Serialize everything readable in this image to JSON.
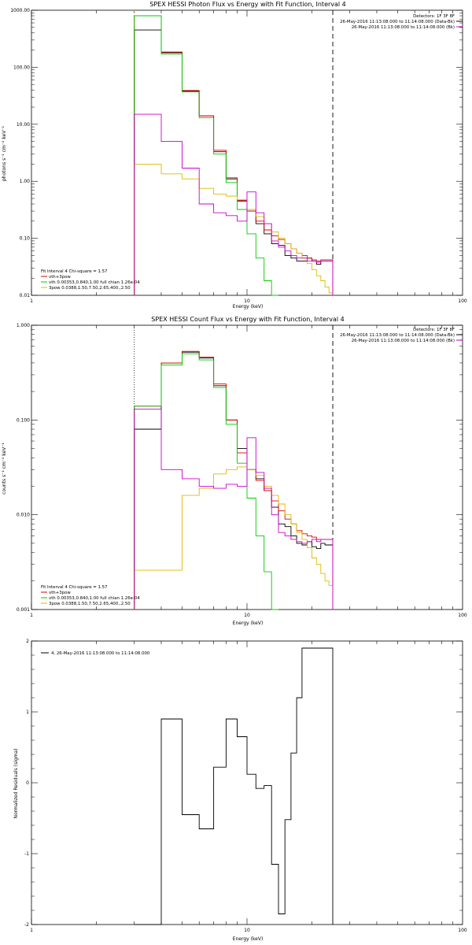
{
  "colors": {
    "total": "#000000",
    "combined_fit": "#dd0000",
    "vth": "#00cc00",
    "pow": "#ddbb00",
    "bk": "#cc00cc",
    "dashed": "#000000",
    "dotted": "#000000",
    "orange": "#ff8800"
  },
  "chart_data": [
    {
      "type": "line",
      "title": "SPEX HESSI Photon Flux vs Energy with Fit Function, Interval 4",
      "xlabel": "Energy (keV)",
      "ylabel": "photons s⁻¹ cm⁻² keV⁻¹",
      "xscale": "log",
      "yscale": "log",
      "xlim": [
        1,
        100
      ],
      "ylim": [
        0.01,
        1000
      ],
      "x_ticks": [
        "1",
        "10",
        "100"
      ],
      "y_ticks": [
        "0.01",
        "0.10",
        "1.00",
        "10.00",
        "100.00",
        "1000.00"
      ],
      "legend_top_right": [
        "Detectors: 1F 3F 8F",
        "26-May-2016 11:13:08.000 to 11:14:08.000 (Data-Bk)",
        "26-May-2016 11:13:08.000 to 11:14:08.000 (Bk)"
      ],
      "legend_bottom_left": [
        "Fit Interval 4   Chi-square = 1.57",
        "vth+3pow",
        "vth 0.00353,0.840,1.00  full chian 1.26e-04",
        "3pow 0.0388,1.50,7.50,2.65,400.,2.50"
      ],
      "x_edges": [
        3,
        4,
        5,
        6,
        7,
        8,
        9,
        10,
        11,
        12,
        13,
        14,
        15,
        16,
        17,
        18,
        19,
        20,
        21,
        22,
        23,
        24,
        25
      ],
      "series": [
        {
          "name": "Data-Bk",
          "color": "#000000",
          "values": [
            450,
            180,
            38,
            14,
            3.3,
            1.1,
            0.45,
            0.3,
            0.18,
            0.12,
            0.08,
            0.075,
            0.05,
            0.045,
            0.04,
            0.04,
            0.045,
            0.04,
            0.035,
            0.04,
            0.04,
            0.04
          ]
        },
        {
          "name": "vth+3pow",
          "color": "#dd0000",
          "values": [
            800,
            185,
            39,
            14,
            3.5,
            1.15,
            0.46,
            0.3,
            0.2,
            0.14,
            0.11,
            0.095,
            0.08,
            0.065,
            0.055,
            0.05,
            0.045,
            0.042,
            0.04,
            0.042,
            0.042,
            0.042
          ]
        },
        {
          "name": "vth",
          "color": "#00cc00",
          "values": [
            800,
            170,
            37,
            13,
            3.0,
            0.95,
            0.32,
            0.12,
            0.045,
            0.018,
            0.0
          ]
        },
        {
          "name": "3pow",
          "color": "#ddbb00",
          "values": [
            2.0,
            1.35,
            1.1,
            0.75,
            0.6,
            0.55,
            0.48,
            0.32,
            0.24,
            0.18,
            0.13,
            0.1,
            0.08,
            0.065,
            0.055,
            0.045,
            0.036,
            0.028,
            0.022,
            0.018,
            0.014,
            0.011
          ]
        },
        {
          "name": "Bk",
          "color": "#cc00cc",
          "values": [
            15,
            5,
            1.7,
            0.4,
            0.28,
            0.25,
            0.2,
            0.65,
            0.28,
            0.18,
            0.09,
            0.07,
            0.06,
            0.05,
            0.045,
            0.045,
            0.04,
            0.04,
            0.038,
            0.04,
            0.04,
            0.04
          ]
        }
      ],
      "dotted_line_x": 3,
      "dashed_line_x": 25
    },
    {
      "type": "line",
      "title": "SPEX HESSI Count Flux vs Energy with Fit Function, Interval 4",
      "xlabel": "Energy (keV)",
      "ylabel": "counts s⁻¹ cm⁻² keV⁻¹",
      "xscale": "log",
      "yscale": "log",
      "xlim": [
        1,
        100
      ],
      "ylim": [
        0.001,
        1
      ],
      "x_ticks": [
        "1",
        "10",
        "100"
      ],
      "y_ticks": [
        "0.001",
        "0.010",
        "0.100",
        "1.000"
      ],
      "legend_top_right": [
        "Detectors: 1F 3F 8F",
        "26-May-2016 11:13:08.000 to 11:14:08.000 (Data-Bk)",
        "26-May-2016 11:13:08.000 to 11:14:08.000 (Bk)"
      ],
      "legend_bottom_left": [
        "Fit Interval 4   Chi-square = 1.57",
        "vth+3pow",
        "vth 0.00353,0.840,1.00  full chian 1.26e-04",
        "3pow 0.0388,1.50,7.50,2.65,400.,2.50"
      ],
      "x_edges": [
        3,
        4,
        5,
        6,
        7,
        8,
        9,
        10,
        11,
        12,
        13,
        14,
        15,
        16,
        17,
        18,
        19,
        20,
        21,
        22,
        23,
        24,
        25
      ],
      "series": [
        {
          "name": "Data-Bk",
          "color": "#000000",
          "values": [
            0.08,
            0.4,
            0.52,
            0.45,
            0.23,
            0.1,
            0.05,
            0.03,
            0.024,
            0.018,
            0.012,
            0.008,
            0.0075,
            0.006,
            0.005,
            0.0048,
            0.0052,
            0.0046,
            0.0044,
            0.005,
            0.0048,
            0.0048
          ]
        },
        {
          "name": "vth+3pow",
          "color": "#dd0000",
          "values": [
            0.14,
            0.4,
            0.53,
            0.46,
            0.24,
            0.1,
            0.045,
            0.03,
            0.023,
            0.018,
            0.014,
            0.011,
            0.009,
            0.008,
            0.0068,
            0.0063,
            0.006,
            0.0058,
            0.0055,
            0.0055,
            0.0055,
            0.0055
          ]
        },
        {
          "name": "vth",
          "color": "#00cc00",
          "values": [
            0.14,
            0.38,
            0.5,
            0.43,
            0.22,
            0.09,
            0.035,
            0.015,
            0.006,
            0.0025,
            0.001
          ]
        },
        {
          "name": "3pow",
          "color": "#ddbb00",
          "values": [
            0.0026,
            0.0026,
            0.016,
            0.019,
            0.027,
            0.03,
            0.032,
            0.03,
            0.026,
            0.02,
            0.016,
            0.013,
            0.01,
            0.008,
            0.0065,
            0.0055,
            0.0045,
            0.0035,
            0.003,
            0.0024,
            0.002,
            0.0018
          ]
        },
        {
          "name": "Bk",
          "color": "#cc00cc",
          "values": [
            0.13,
            0.03,
            0.024,
            0.02,
            0.019,
            0.021,
            0.02,
            0.065,
            0.028,
            0.019,
            0.01,
            0.0065,
            0.006,
            0.0055,
            0.0052,
            0.005,
            0.0052,
            0.0055,
            0.0052,
            0.0055,
            0.0055,
            0.0055
          ]
        }
      ],
      "dotted_line_x": 3,
      "dashed_line_x": 25
    },
    {
      "type": "line",
      "title": "",
      "xlabel": "Energy (keV)",
      "ylabel": "Normalized Residuals (sigma)",
      "xscale": "log",
      "yscale": "linear",
      "xlim": [
        1,
        100
      ],
      "ylim": [
        -2,
        2
      ],
      "x_ticks": [
        "1",
        "10",
        "100"
      ],
      "y_ticks": [
        "-2",
        "-1",
        "0",
        "1",
        "2"
      ],
      "legend": [
        "4, 26-May-2016 11:13:08.000 to 11:14:08.000"
      ],
      "x_edges": [
        3,
        4,
        5,
        6,
        7,
        8,
        9,
        10,
        11,
        12,
        13,
        14,
        15,
        16,
        17,
        18,
        19,
        20,
        21,
        22,
        23,
        24,
        25
      ],
      "series": [
        {
          "name": "4, 26-May-2016 11:13:08.000 to 11:14:08.000",
          "color": "#000000",
          "values": [
            -2.0,
            0.9,
            -0.45,
            -0.65,
            0.22,
            0.9,
            0.65,
            0.12,
            -0.08,
            -0.04,
            -1.15,
            -1.85,
            -0.52,
            0.42,
            1.2,
            1.9,
            1.9,
            1.9,
            1.9,
            1.9,
            1.9,
            1.9
          ]
        }
      ]
    }
  ]
}
